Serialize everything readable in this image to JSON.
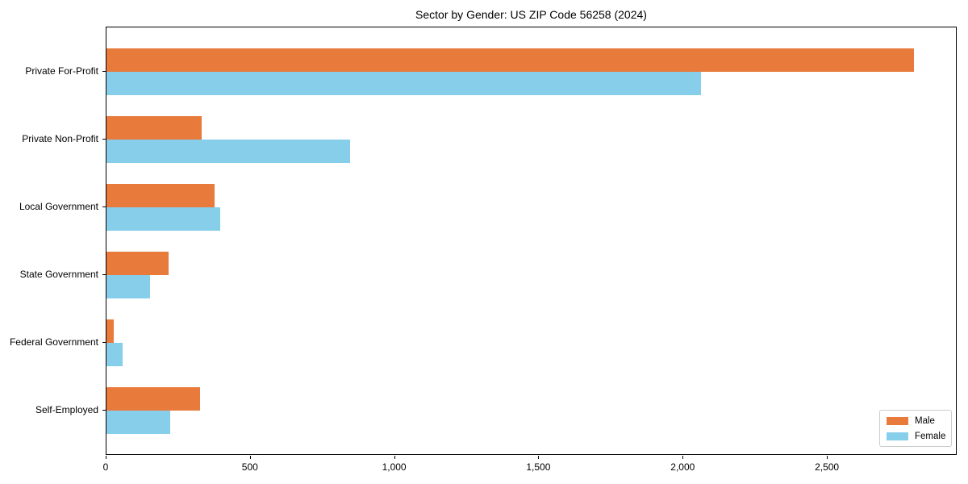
{
  "title": "Sector by Gender: US ZIP Code 56258 (2024)",
  "chart_data": {
    "type": "bar",
    "orientation": "horizontal",
    "title": "Sector by Gender: US ZIP Code 56258 (2024)",
    "xlabel": "",
    "ylabel": "",
    "categories": [
      "Private For-Profit",
      "Private Non-Profit",
      "Local Government",
      "State Government",
      "Federal Government",
      "Self-Employed"
    ],
    "series": [
      {
        "name": "Male",
        "color": "#e87a3c",
        "values": [
          2800,
          330,
          375,
          215,
          25,
          325
        ]
      },
      {
        "name": "Female",
        "color": "#87ceeb",
        "values": [
          2060,
          845,
          395,
          150,
          55,
          220
        ]
      }
    ],
    "xlim": [
      0,
      2950
    ],
    "x_ticks": [
      0,
      500,
      1000,
      1500,
      2000,
      2500
    ],
    "x_tick_labels": [
      "0",
      "500",
      "1,000",
      "1,500",
      "2,000",
      "2,500"
    ],
    "grid": false,
    "legend_position": "lower right"
  },
  "legend": {
    "items": [
      {
        "label": "Male",
        "color": "#e87a3c"
      },
      {
        "label": "Female",
        "color": "#87ceeb"
      }
    ]
  }
}
